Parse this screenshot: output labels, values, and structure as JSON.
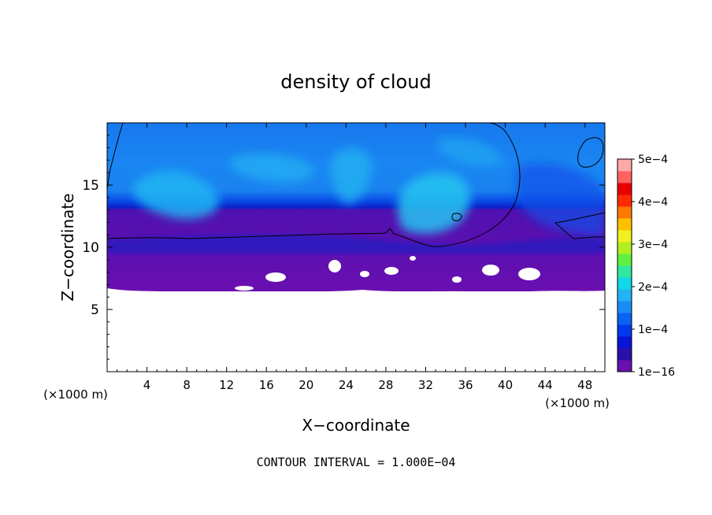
{
  "chart_data": {
    "type": "heatmap",
    "title": "density of cloud",
    "xlabel": "X−coordinate",
    "ylabel": "Z−coordinate",
    "x_unit_left": "(×1000 m)",
    "x_unit_right": "(×1000 m)",
    "xlim": [
      0,
      50
    ],
    "ylim": [
      0,
      20
    ],
    "x_ticks": [
      4,
      8,
      12,
      16,
      20,
      24,
      28,
      32,
      36,
      40,
      44,
      48
    ],
    "x_tick_labels": [
      "4",
      "8",
      "12",
      "16",
      "20",
      "24",
      "28",
      "32",
      "36",
      "40",
      "44",
      "48"
    ],
    "y_ticks": [
      5,
      10,
      15
    ],
    "y_tick_labels": [
      "5",
      "10",
      "15"
    ],
    "footnote": "CONTOUR INTERVAL = 1.000E−04",
    "colorbar": {
      "range": [
        0,
        0.0005
      ],
      "tick_values": [
        0,
        0.0001,
        0.0002,
        0.0003,
        0.0004,
        0.0005
      ],
      "tick_labels": [
        "1e−16",
        "1e−4",
        "2e−4",
        "3e−4",
        "4e−4",
        "5e−4"
      ],
      "colors": [
        "#6a0fb0",
        "#2a10a8",
        "#0a14d8",
        "#0038f0",
        "#0a62f2",
        "#1a8cf6",
        "#22b4f2",
        "#10d8e8",
        "#30e8a0",
        "#60f040",
        "#b0f020",
        "#f0f020",
        "#ffc000",
        "#ff7a00",
        "#ff2a00",
        "#e80000",
        "#ff6060",
        "#ffa8a8"
      ]
    },
    "cloud_top_contour_z": 10.5,
    "cloud_base_z": 6.5
  }
}
